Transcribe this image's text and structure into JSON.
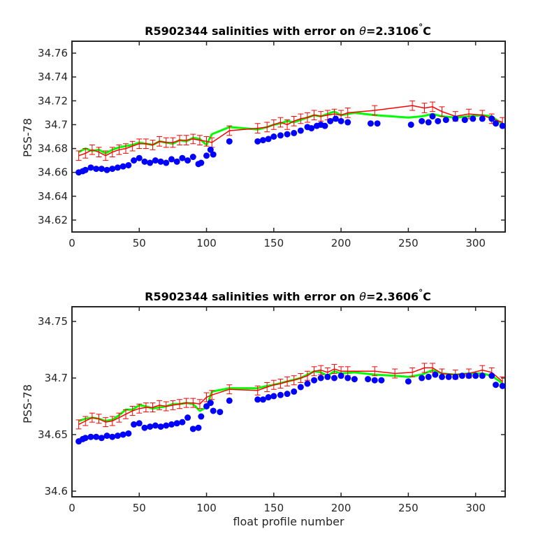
{
  "colors": {
    "climatology_line": "#00ff00",
    "mapped_salinity": "#ff0000",
    "float_salinity": "#0000ff",
    "axes": "#262626",
    "background": "#ffffff"
  },
  "chart_data": [
    {
      "type": "line",
      "title": "R5902344 salinities with error on θ=2.3106°C",
      "title_prefix": "R5902344 salinities with error on ",
      "title_symbol": "θ",
      "title_value": "=2.3106",
      "title_degree": "°",
      "title_unit": "C",
      "xlabel": "",
      "ylabel": "PSS-78",
      "xlim": [
        0,
        322
      ],
      "ylim": [
        34.61,
        34.77
      ],
      "xticks": [
        0,
        50,
        100,
        150,
        200,
        250,
        300
      ],
      "yticks": [
        34.62,
        34.64,
        34.66,
        34.68,
        34.7,
        34.72,
        34.74,
        34.76
      ],
      "grid": false,
      "legend": "none",
      "series": [
        {
          "role": "line",
          "x": [
            5,
            10,
            15,
            20,
            25,
            30,
            35,
            40,
            45,
            50,
            55,
            60,
            65,
            70,
            75,
            80,
            85,
            90,
            95,
            100,
            104,
            117,
            138,
            145,
            150,
            155,
            160,
            165,
            170,
            175,
            180,
            185,
            190,
            195,
            200,
            205,
            210,
            225,
            250,
            260,
            268,
            275,
            285,
            295,
            305,
            312,
            318,
            320
          ],
          "y": [
            34.677,
            34.68,
            34.678,
            34.679,
            34.676,
            34.679,
            34.681,
            34.682,
            34.683,
            34.685,
            34.684,
            34.683,
            34.686,
            34.685,
            34.684,
            34.687,
            34.686,
            34.689,
            34.688,
            34.683,
            34.692,
            34.698,
            34.696,
            34.698,
            34.7,
            34.701,
            34.703,
            34.702,
            34.704,
            34.706,
            34.708,
            34.707,
            34.709,
            34.711,
            34.708,
            34.709,
            34.71,
            34.708,
            34.706,
            34.707,
            34.709,
            34.707,
            34.706,
            34.707,
            34.708,
            34.707,
            34.702,
            34.7
          ]
        },
        {
          "role": "mapped-with-error",
          "err": 0.004,
          "x": [
            5,
            10,
            15,
            20,
            25,
            30,
            35,
            40,
            45,
            50,
            55,
            60,
            65,
            70,
            75,
            80,
            85,
            90,
            95,
            100,
            104,
            117,
            138,
            145,
            150,
            155,
            160,
            165,
            170,
            175,
            180,
            185,
            190,
            195,
            200,
            205,
            225,
            253,
            262,
            268,
            275,
            285,
            295,
            305,
            312,
            320
          ],
          "y": [
            34.674,
            34.676,
            34.679,
            34.677,
            34.674,
            34.677,
            34.679,
            34.68,
            34.682,
            34.684,
            34.684,
            34.683,
            34.686,
            34.685,
            34.685,
            34.687,
            34.687,
            34.688,
            34.687,
            34.686,
            34.685,
            34.695,
            34.697,
            34.698,
            34.7,
            34.702,
            34.7,
            34.703,
            34.705,
            34.706,
            34.708,
            34.707,
            34.708,
            34.709,
            34.708,
            34.71,
            34.712,
            34.716,
            34.714,
            34.715,
            34.711,
            34.707,
            34.709,
            34.708,
            34.705,
            34.702
          ]
        },
        {
          "role": "float-points",
          "x": [
            5,
            8,
            10,
            14,
            18,
            22,
            26,
            30,
            34,
            38,
            42,
            46,
            50,
            54,
            58,
            62,
            66,
            70,
            74,
            78,
            82,
            86,
            90,
            94,
            96,
            100,
            103,
            105,
            117,
            138,
            142,
            146,
            150,
            155,
            160,
            165,
            170,
            175,
            178,
            182,
            185,
            188,
            192,
            196,
            200,
            205,
            222,
            227,
            252,
            260,
            265,
            268,
            272,
            278,
            285,
            292,
            298,
            305,
            312,
            315,
            320
          ],
          "y": [
            34.66,
            34.661,
            34.662,
            34.664,
            34.663,
            34.663,
            34.662,
            34.663,
            34.664,
            34.665,
            34.666,
            34.67,
            34.672,
            34.669,
            34.668,
            34.67,
            34.669,
            34.668,
            34.671,
            34.669,
            34.672,
            34.67,
            34.673,
            34.667,
            34.668,
            34.674,
            34.679,
            34.675,
            34.686,
            34.686,
            34.687,
            34.688,
            34.69,
            34.691,
            34.692,
            34.693,
            34.695,
            34.698,
            34.697,
            34.699,
            34.7,
            34.699,
            34.703,
            34.705,
            34.703,
            34.702,
            34.701,
            34.701,
            34.7,
            34.703,
            34.702,
            34.707,
            34.703,
            34.704,
            34.705,
            34.704,
            34.705,
            34.705,
            34.705,
            34.701,
            34.699
          ]
        }
      ]
    },
    {
      "type": "line",
      "title": "R5902344 salinities with error on θ=2.3606°C",
      "title_prefix": "R5902344 salinities with error on ",
      "title_symbol": "θ",
      "title_value": "=2.3606",
      "title_degree": "°",
      "title_unit": "C",
      "xlabel": "float profile number",
      "ylabel": "PSS-78",
      "xlim": [
        0,
        322
      ],
      "ylim": [
        34.595,
        34.763
      ],
      "xticks": [
        0,
        50,
        100,
        150,
        200,
        250,
        300
      ],
      "yticks": [
        34.6,
        34.65,
        34.7,
        34.75
      ],
      "grid": false,
      "legend": "none",
      "series": [
        {
          "role": "line",
          "x": [
            5,
            10,
            15,
            20,
            25,
            30,
            35,
            40,
            45,
            50,
            55,
            60,
            65,
            70,
            75,
            80,
            85,
            90,
            95,
            100,
            104,
            117,
            138,
            145,
            150,
            160,
            170,
            180,
            185,
            190,
            195,
            200,
            210,
            225,
            240,
            250,
            260,
            268,
            275,
            285,
            295,
            305,
            312,
            318,
            320
          ],
          "y": [
            34.662,
            34.664,
            34.665,
            34.664,
            34.662,
            34.663,
            34.667,
            34.672,
            34.672,
            34.676,
            34.675,
            34.673,
            34.674,
            34.675,
            34.677,
            34.677,
            34.678,
            34.677,
            34.671,
            34.674,
            34.688,
            34.691,
            34.691,
            34.693,
            34.694,
            34.697,
            34.7,
            34.706,
            34.705,
            34.702,
            34.706,
            34.704,
            34.705,
            34.703,
            34.702,
            34.701,
            34.703,
            34.707,
            34.704,
            34.703,
            34.704,
            34.704,
            34.702,
            34.697,
            34.695
          ]
        },
        {
          "role": "mapped-with-error",
          "err": 0.004,
          "x": [
            5,
            10,
            15,
            20,
            25,
            30,
            35,
            40,
            45,
            50,
            55,
            60,
            65,
            70,
            75,
            80,
            85,
            90,
            95,
            100,
            104,
            117,
            138,
            145,
            150,
            155,
            160,
            165,
            170,
            175,
            180,
            185,
            190,
            195,
            200,
            205,
            225,
            240,
            253,
            262,
            268,
            275,
            285,
            295,
            305,
            312,
            320
          ],
          "y": [
            34.659,
            34.662,
            34.665,
            34.664,
            34.661,
            34.662,
            34.665,
            34.668,
            34.671,
            34.673,
            34.674,
            34.674,
            34.676,
            34.675,
            34.676,
            34.677,
            34.678,
            34.678,
            34.677,
            34.683,
            34.685,
            34.69,
            34.689,
            34.692,
            34.694,
            34.695,
            34.697,
            34.698,
            34.7,
            34.702,
            34.706,
            34.707,
            34.705,
            34.708,
            34.706,
            34.706,
            34.706,
            34.704,
            34.705,
            34.709,
            34.709,
            34.704,
            34.703,
            34.704,
            34.707,
            34.705,
            34.697
          ]
        },
        {
          "role": "float-points",
          "x": [
            5,
            8,
            10,
            14,
            18,
            22,
            26,
            30,
            34,
            38,
            42,
            46,
            50,
            54,
            58,
            62,
            66,
            70,
            74,
            78,
            82,
            86,
            90,
            94,
            96,
            100,
            103,
            105,
            110,
            117,
            138,
            142,
            146,
            150,
            155,
            160,
            165,
            170,
            175,
            180,
            185,
            190,
            195,
            200,
            205,
            210,
            220,
            225,
            230,
            250,
            260,
            265,
            270,
            275,
            280,
            285,
            290,
            295,
            300,
            305,
            312,
            315,
            320
          ],
          "y": [
            34.644,
            34.646,
            34.647,
            34.648,
            34.648,
            34.647,
            34.649,
            34.648,
            34.649,
            34.65,
            34.651,
            34.659,
            34.66,
            34.656,
            34.657,
            34.658,
            34.657,
            34.658,
            34.659,
            34.66,
            34.661,
            34.665,
            34.655,
            34.656,
            34.666,
            34.675,
            34.678,
            34.671,
            34.67,
            34.68,
            34.681,
            34.681,
            34.683,
            34.684,
            34.685,
            34.686,
            34.688,
            34.692,
            34.695,
            34.698,
            34.7,
            34.701,
            34.7,
            34.702,
            34.7,
            34.699,
            34.699,
            34.698,
            34.698,
            34.697,
            34.7,
            34.701,
            34.703,
            34.701,
            34.701,
            34.701,
            34.702,
            34.702,
            34.702,
            34.702,
            34.702,
            34.694,
            34.693
          ]
        }
      ]
    }
  ]
}
